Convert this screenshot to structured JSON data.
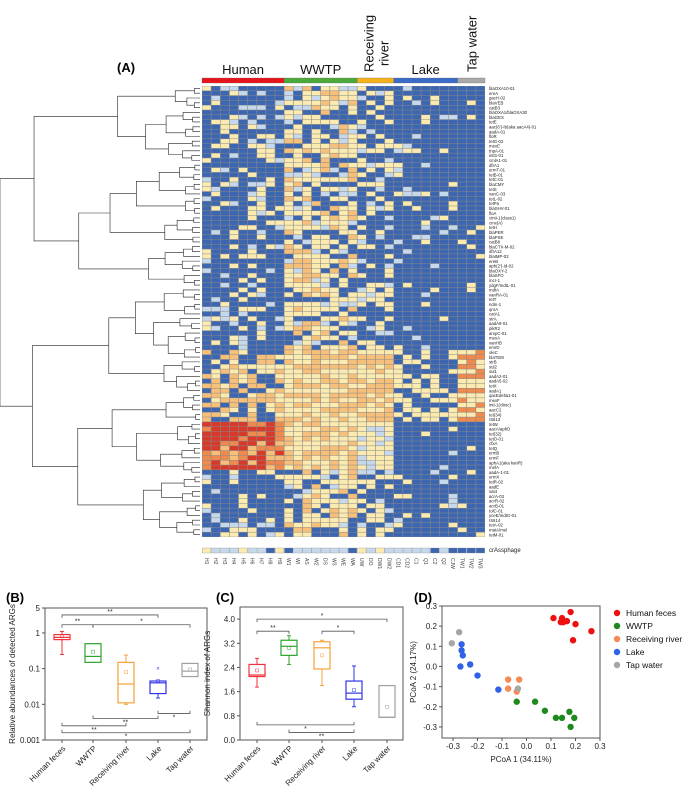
{
  "panel_labels": {
    "a": "(A)",
    "b": "(B)",
    "c": "(C)",
    "d": "(D)"
  },
  "groups": [
    {
      "name": "Human",
      "color": "#e8141c",
      "columns": [
        "H1",
        "H2",
        "H3",
        "H4",
        "H5",
        "H6",
        "H7",
        "H8",
        "H9"
      ]
    },
    {
      "name": "WWTP",
      "color": "#4caa3c",
      "columns": [
        "W1",
        "WI",
        "AS",
        "W2",
        "DS",
        "W3",
        "WE",
        "WA"
      ]
    },
    {
      "name": "Receiving river",
      "color": "#f5b21c",
      "columns": [
        "UW",
        "DO",
        "DW1",
        "DW2"
      ]
    },
    {
      "name": "Lake",
      "color": "#3b6cc6",
      "columns": [
        "CD1",
        "CD2",
        "C1",
        "Q1",
        "C2",
        "Q2",
        "CJW"
      ]
    },
    {
      "name": "Tap water",
      "color": "#a9a9a9",
      "columns": [
        "TW1",
        "TW2",
        "TW3"
      ]
    }
  ],
  "chart_data": [
    {
      "type": "heatmap",
      "panel": "A",
      "rows": [
        "blaOXA10-01",
        "ereA",
        "gacH-02",
        "blaVEB",
        "catB3",
        "blaOXA1/blaOXA30",
        "blaGES",
        "tetE",
        "aac(6')-Ib(aka aacA4)-01",
        "aadA-01",
        "floR",
        "tetG-02",
        "mexE",
        "tnpA-01",
        "intI1-01",
        "cmlA1-01",
        "dfrA1",
        "ermT-01",
        "tetB-01",
        "tetC-01",
        "blaCMY",
        "tetS",
        "vanC-03",
        "tetL-02",
        "tetPa",
        "blaSHV-01",
        "floA",
        "cintI-1(class1)",
        "cmx(A)",
        "tetH",
        "blaPER",
        "blaPSE",
        "catB8",
        "blaCTX-M-02",
        "dfrA12",
        "blaIMP-02",
        "ereB",
        "aph(2')-Id-02",
        "blaOXY-2",
        "blaSFO",
        "mcr-1",
        "ydgF/mdtL-01",
        "mdtA",
        "vanRA-01",
        "tetT",
        "ndm-1",
        "qnrA",
        "catA1",
        "strA",
        "aadA9-01",
        "pikR2",
        "ampC-01",
        "mexA",
        "vanHB",
        "emrD",
        "oleC",
        "blaTEM",
        "strB",
        "sul2",
        "sul1",
        "aadA2-01",
        "aadA5-02",
        "tetX",
        "aadA1",
        "qacEdelta1-01",
        "mexF",
        "intI-1(clinic)",
        "aacC2",
        "tet(34)",
        "IS613",
        "tetW",
        "aacA/aphD",
        "tet(32)",
        "tetO-01",
        "cfxA",
        "tetQ",
        "ermB",
        "ermF",
        "aphA1(aka kanR)",
        "mefA",
        "aadA-1-01",
        "ermX",
        "tetR-02",
        "aadE",
        "sat4",
        "acrA-03",
        "acrR-02",
        "acrB-01",
        "tolC-01",
        "yceE/mdtG-01",
        "IS614",
        "tetA-02",
        "matA/mel",
        "tetM-01"
      ],
      "extra_row": "crAssphage",
      "color_scale": [
        "#3d66b1",
        "#c6d9ec",
        "#fcebb0",
        "#f6c07a",
        "#ef8a4e",
        "#d7392a"
      ]
    },
    {
      "type": "box",
      "panel": "B",
      "ylabel": "Relative abundances of detected ARGs",
      "yscale": "log",
      "ylim": [
        0.001,
        5
      ],
      "yticks": [
        "0.001",
        "0.01",
        "0.1",
        "1",
        "5"
      ],
      "categories": [
        "Human feces",
        "WWTP",
        "Receiving river",
        "Lake",
        "Tap water"
      ],
      "boxes": [
        {
          "min": 0.25,
          "q1": 0.65,
          "median": 0.75,
          "q3": 0.9,
          "max": 1.1,
          "mean": 0.8
        },
        {
          "min": 0.15,
          "q1": 0.15,
          "median": 0.22,
          "q3": 0.5,
          "max": 0.5,
          "mean": 0.3
        },
        {
          "min": 0.01,
          "q1": 0.011,
          "median": 0.037,
          "q3": 0.15,
          "max": 0.24,
          "mean": 0.08
        },
        {
          "min": 0.015,
          "q1": 0.02,
          "median": 0.04,
          "q3": 0.045,
          "max": 0.045,
          "mean": 0.045,
          "outliers": [
            0.1
          ]
        },
        {
          "min": 0.06,
          "q1": 0.06,
          "median": 0.085,
          "q3": 0.14,
          "max": 0.14,
          "mean": 0.095
        }
      ],
      "significance": [
        {
          "from": 0,
          "to": 3,
          "y": 3.2,
          "label": "**"
        },
        {
          "from": 0,
          "to": 1,
          "y": 1.7,
          "label": "**"
        },
        {
          "from": 1,
          "to": 4,
          "y": 1.7,
          "label": "*"
        },
        {
          "from": 3,
          "to": 4,
          "y": 0.0055,
          "label": "*"
        },
        {
          "from": 1,
          "to": 3,
          "y": 0.004,
          "label": "**"
        },
        {
          "from": 0,
          "to": 2,
          "y": 0.0025,
          "label": "**"
        },
        {
          "from": 0,
          "to": 4,
          "y": 0.0016,
          "label": "*"
        }
      ]
    },
    {
      "type": "box",
      "panel": "C",
      "ylabel": "Shannon index of ARGs",
      "ylim": [
        0,
        4.4
      ],
      "yticks": [
        "0.0",
        "0.8",
        "1.6",
        "2.4",
        "3.2",
        "4.0"
      ],
      "categories": [
        "Human feces",
        "WWTP",
        "Receiving river",
        "Lake",
        "Tap water"
      ],
      "boxes": [
        {
          "min": 1.75,
          "q1": 2.1,
          "median": 2.15,
          "q3": 2.5,
          "max": 2.7,
          "mean": 2.3
        },
        {
          "min": 2.5,
          "q1": 2.8,
          "median": 3.1,
          "q3": 3.3,
          "max": 3.45,
          "mean": 3.05
        },
        {
          "min": 1.8,
          "q1": 2.35,
          "median": 3.05,
          "q3": 3.25,
          "max": 3.3,
          "mean": 2.8
        },
        {
          "min": 1.1,
          "q1": 1.35,
          "median": 1.55,
          "q3": 1.95,
          "max": 2.45,
          "mean": 1.65
        },
        {
          "min": 0.75,
          "q1": 0.75,
          "median": 0.75,
          "q3": 1.8,
          "max": 1.8,
          "mean": 1.1
        }
      ],
      "significance": [
        {
          "from": 0,
          "to": 4,
          "y": 4.0,
          "label": "*"
        },
        {
          "from": 0,
          "to": 1,
          "y": 3.6,
          "label": "**"
        },
        {
          "from": 2,
          "to": 3,
          "y": 3.6,
          "label": "*"
        },
        {
          "from": 0,
          "to": 3,
          "y": 0.5,
          "label": "*"
        },
        {
          "from": 1,
          "to": 3,
          "y": 0.25,
          "label": "**"
        }
      ]
    },
    {
      "type": "scatter",
      "panel": "D",
      "xlabel": "PCoA 1 (34.11%)",
      "ylabel": "PCoA 2 (24.17%)",
      "xlim": [
        -0.345,
        0.3
      ],
      "ylim": [
        -0.355,
        0.3
      ],
      "xticks": [
        "-0.3",
        "-0.2",
        "-0.1",
        "0.0",
        "0.1",
        "0.2",
        "0.3"
      ],
      "yticks": [
        "-0.3",
        "-0.2",
        "-0.1",
        "0.0",
        "0.1",
        "0.2",
        "0.3"
      ],
      "legend_position": "right",
      "series": [
        {
          "name": "Human feces",
          "color": "#ee1010",
          "points": [
            [
              0.11,
              0.24
            ],
            [
              0.145,
              0.24
            ],
            [
              0.14,
              0.22
            ],
            [
              0.15,
              0.22
            ],
            [
              0.165,
              0.225
            ],
            [
              0.18,
              0.27
            ],
            [
              0.2,
              0.21
            ],
            [
              0.265,
              0.175
            ],
            [
              0.19,
              0.13
            ]
          ]
        },
        {
          "name": "WWTP",
          "color": "#1e8a1e",
          "points": [
            [
              -0.04,
              -0.175
            ],
            [
              0.035,
              -0.175
            ],
            [
              0.075,
              -0.22
            ],
            [
              0.12,
              -0.255
            ],
            [
              0.145,
              -0.255
            ],
            [
              0.175,
              -0.225
            ],
            [
              0.195,
              -0.255
            ],
            [
              0.18,
              -0.3
            ]
          ]
        },
        {
          "name": "Receiving river",
          "color": "#f58a55",
          "points": [
            [
              -0.075,
              -0.065
            ],
            [
              -0.03,
              -0.065
            ],
            [
              -0.075,
              -0.11
            ],
            [
              -0.04,
              -0.125
            ]
          ]
        },
        {
          "name": "Lake",
          "color": "#2f62e6",
          "points": [
            [
              -0.265,
              0.11
            ],
            [
              -0.265,
              0.08
            ],
            [
              -0.26,
              0.055
            ],
            [
              -0.27,
              0.0
            ],
            [
              -0.23,
              0.01
            ],
            [
              -0.2,
              -0.045
            ],
            [
              -0.115,
              -0.115
            ]
          ]
        },
        {
          "name": "Tap water",
          "color": "#a6a6a6",
          "points": [
            [
              -0.275,
              0.17
            ],
            [
              -0.305,
              0.115
            ],
            [
              -0.035,
              -0.11
            ]
          ]
        }
      ]
    }
  ]
}
